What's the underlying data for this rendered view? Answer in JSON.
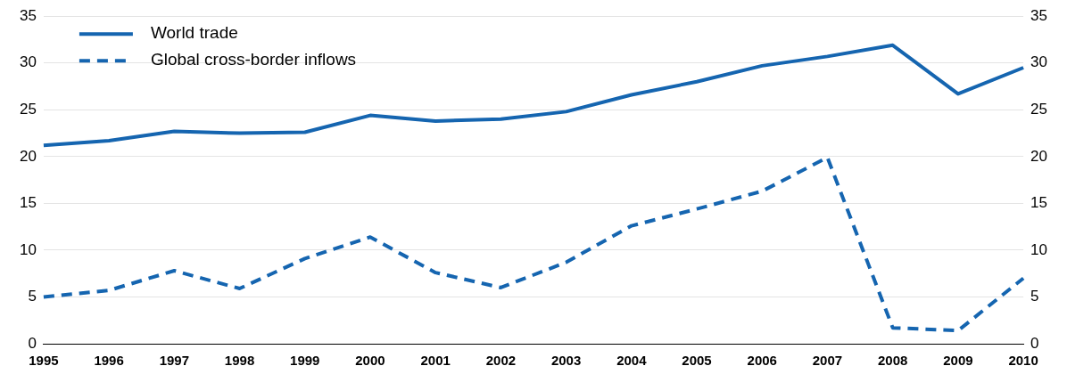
{
  "chart_data": {
    "type": "line",
    "categories": [
      "1995",
      "1996",
      "1997",
      "1998",
      "1999",
      "2000",
      "2001",
      "2002",
      "2003",
      "2004",
      "2005",
      "2006",
      "2007",
      "2008",
      "2009",
      "2010"
    ],
    "series": [
      {
        "name": "World trade",
        "color": "#1565b0",
        "line_style": "solid",
        "values": [
          21.2,
          21.7,
          22.7,
          22.5,
          22.6,
          24.4,
          23.8,
          24.0,
          24.8,
          26.6,
          28.0,
          29.7,
          30.7,
          31.9,
          26.7,
          29.5
        ]
      },
      {
        "name": "Global cross-border inflows",
        "color": "#1565b0",
        "line_style": "dashed",
        "values": [
          5.0,
          5.7,
          7.8,
          5.9,
          9.1,
          11.4,
          7.6,
          6.0,
          8.7,
          12.6,
          14.4,
          16.3,
          19.9,
          1.7,
          1.4,
          7.0
        ]
      }
    ],
    "ylim": [
      0,
      35
    ],
    "yticks": [
      0,
      5,
      10,
      15,
      20,
      25,
      30,
      35
    ],
    "y2lim": [
      0,
      35
    ],
    "y2ticks": [
      0,
      5,
      10,
      15,
      20,
      25,
      30,
      35
    ],
    "grid": "y",
    "legend": "top left",
    "marker": "none"
  }
}
